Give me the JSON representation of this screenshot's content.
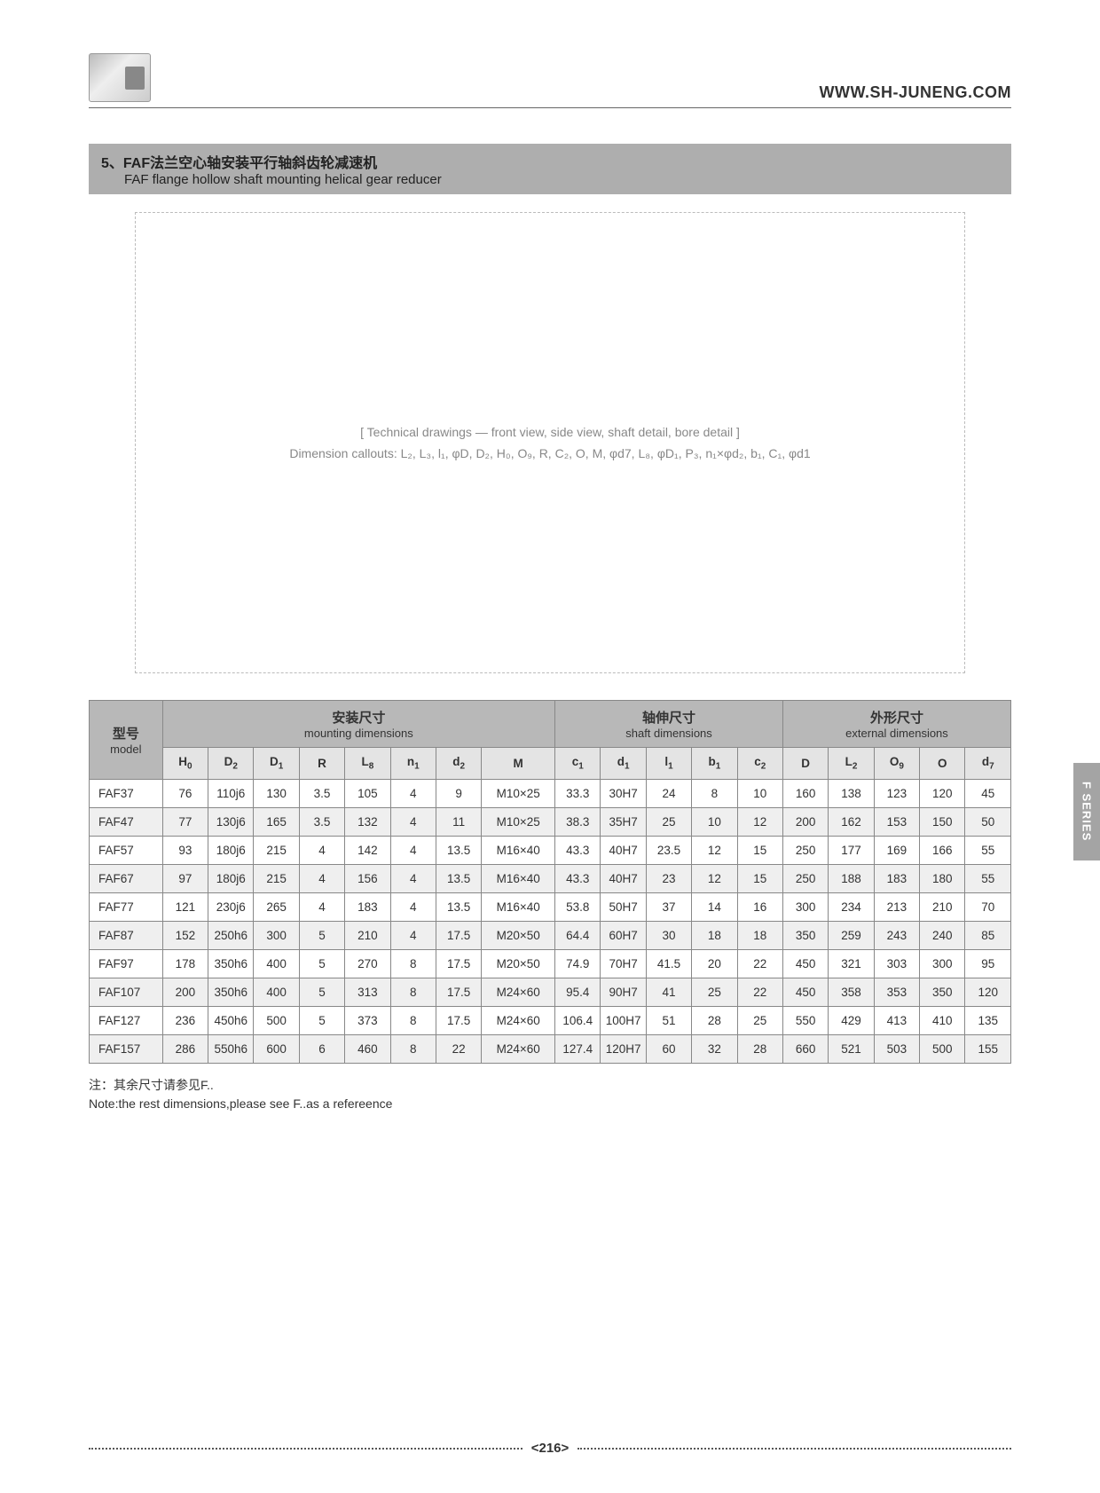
{
  "header": {
    "website": "WWW.SH-JUNENG.COM"
  },
  "title": {
    "cn": "5、FAF法兰空心轴安装平行轴斜齿轮减速机",
    "en": "FAF flange hollow shaft mounting helical gear reducer"
  },
  "diagram": {
    "placeholder_line1": "[ Technical drawings — front view, side view, shaft detail, bore detail ]",
    "placeholder_line2": "Dimension callouts: L₂, L₃, l₁, φD, D₂, H₀, O₉, R, C₂, O, M, φd7, L₈, φD₁, P₃, n₁×φd₂, b₁, C₁, φd1"
  },
  "table": {
    "group_headers": {
      "model_cn": "型号",
      "model_en": "model",
      "mounting_cn": "安装尺寸",
      "mounting_en": "mounting dimensions",
      "shaft_cn": "轴伸尺寸",
      "shaft_en": "shaft dimensions",
      "external_cn": "外形尺寸",
      "external_en": "external dimensions"
    },
    "columns": [
      "H₀",
      "D₂",
      "D₁",
      "R",
      "L₈",
      "n₁",
      "d₂",
      "M",
      "c₁",
      "d₁",
      "l₁",
      "b₁",
      "c₂",
      "D",
      "L₂",
      "O₉",
      "O",
      "d₇"
    ],
    "rows": [
      {
        "model": "FAF37",
        "cells": [
          "76",
          "110j6",
          "130",
          "3.5",
          "105",
          "4",
          "9",
          "M10×25",
          "33.3",
          "30H7",
          "24",
          "8",
          "10",
          "160",
          "138",
          "123",
          "120",
          "45"
        ]
      },
      {
        "model": "FAF47",
        "cells": [
          "77",
          "130j6",
          "165",
          "3.5",
          "132",
          "4",
          "11",
          "M10×25",
          "38.3",
          "35H7",
          "25",
          "10",
          "12",
          "200",
          "162",
          "153",
          "150",
          "50"
        ]
      },
      {
        "model": "FAF57",
        "cells": [
          "93",
          "180j6",
          "215",
          "4",
          "142",
          "4",
          "13.5",
          "M16×40",
          "43.3",
          "40H7",
          "23.5",
          "12",
          "15",
          "250",
          "177",
          "169",
          "166",
          "55"
        ]
      },
      {
        "model": "FAF67",
        "cells": [
          "97",
          "180j6",
          "215",
          "4",
          "156",
          "4",
          "13.5",
          "M16×40",
          "43.3",
          "40H7",
          "23",
          "12",
          "15",
          "250",
          "188",
          "183",
          "180",
          "55"
        ]
      },
      {
        "model": "FAF77",
        "cells": [
          "121",
          "230j6",
          "265",
          "4",
          "183",
          "4",
          "13.5",
          "M16×40",
          "53.8",
          "50H7",
          "37",
          "14",
          "16",
          "300",
          "234",
          "213",
          "210",
          "70"
        ]
      },
      {
        "model": "FAF87",
        "cells": [
          "152",
          "250h6",
          "300",
          "5",
          "210",
          "4",
          "17.5",
          "M20×50",
          "64.4",
          "60H7",
          "30",
          "18",
          "18",
          "350",
          "259",
          "243",
          "240",
          "85"
        ]
      },
      {
        "model": "FAF97",
        "cells": [
          "178",
          "350h6",
          "400",
          "5",
          "270",
          "8",
          "17.5",
          "M20×50",
          "74.9",
          "70H7",
          "41.5",
          "20",
          "22",
          "450",
          "321",
          "303",
          "300",
          "95"
        ]
      },
      {
        "model": "FAF107",
        "cells": [
          "200",
          "350h6",
          "400",
          "5",
          "313",
          "8",
          "17.5",
          "M24×60",
          "95.4",
          "90H7",
          "41",
          "25",
          "22",
          "450",
          "358",
          "353",
          "350",
          "120"
        ]
      },
      {
        "model": "FAF127",
        "cells": [
          "236",
          "450h6",
          "500",
          "5",
          "373",
          "8",
          "17.5",
          "M24×60",
          "106.4",
          "100H7",
          "51",
          "28",
          "25",
          "550",
          "429",
          "413",
          "410",
          "135"
        ]
      },
      {
        "model": "FAF157",
        "cells": [
          "286",
          "550h6",
          "600",
          "6",
          "460",
          "8",
          "22",
          "M24×60",
          "127.4",
          "120H7",
          "60",
          "32",
          "28",
          "660",
          "521",
          "503",
          "500",
          "155"
        ]
      }
    ]
  },
  "note": {
    "cn": "注：其余尺寸请参见F..",
    "en": "Note:the rest dimensions,please see F..as a refereence"
  },
  "footer": {
    "page": "<216>"
  },
  "side_tab": "F SERIES",
  "colors": {
    "title_bg": "#aeaeae",
    "group_header_bg": "#b8b8b8",
    "col_header_bg": "#e4e4e4",
    "row_alt_bg": "#efefef",
    "border": "#888888",
    "text": "#333333"
  }
}
